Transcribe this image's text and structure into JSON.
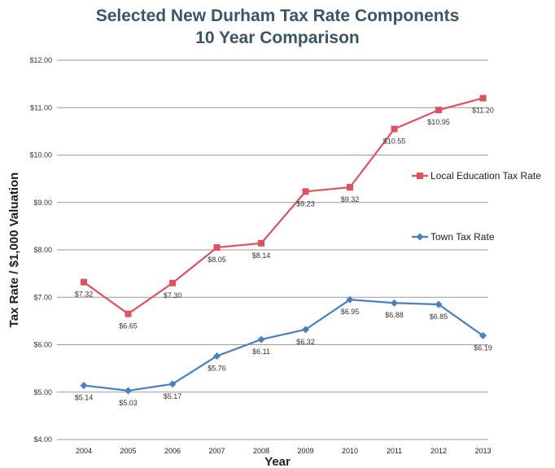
{
  "chart_data": {
    "type": "line",
    "title": [
      "Selected New Durham Tax Rate Components",
      "10 Year Comparison"
    ],
    "xlabel": "Year",
    "ylabel": "Tax Rate / $1,000 Valuation",
    "categories": [
      "2004",
      "2005",
      "2006",
      "2007",
      "2008",
      "2009",
      "2010",
      "2011",
      "2012",
      "2013"
    ],
    "ylim": [
      4,
      12
    ],
    "yticks": [
      "$4.00",
      "$5.00",
      "$6.00",
      "$7.00",
      "$8.00",
      "$9.00",
      "$10.00",
      "$11.00",
      "$12.00"
    ],
    "grid": true,
    "legend": "right",
    "series": [
      {
        "name": "Local Education Tax Rate",
        "color": "#e0505e",
        "marker": "square",
        "values": [
          7.32,
          6.65,
          7.3,
          8.05,
          8.14,
          9.23,
          9.32,
          10.55,
          10.95,
          11.2
        ],
        "labels": [
          "$7.32",
          "$6.65",
          "$7.30",
          "$8.05",
          "$8.14",
          "$9.23",
          "$9.32",
          "$10.55",
          "$10.95",
          "$11.20"
        ]
      },
      {
        "name": "Town Tax Rate",
        "color": "#4a7fc1",
        "marker": "diamond",
        "values": [
          5.14,
          5.03,
          5.17,
          5.76,
          6.11,
          6.32,
          6.95,
          6.88,
          6.85,
          6.19
        ],
        "labels": [
          "$5.14",
          "$5.03",
          "$5.17",
          "$5.76",
          "$6.11",
          "$6.32",
          "$6.95",
          "$6.88",
          "$6.85",
          "$6.19"
        ]
      }
    ]
  }
}
